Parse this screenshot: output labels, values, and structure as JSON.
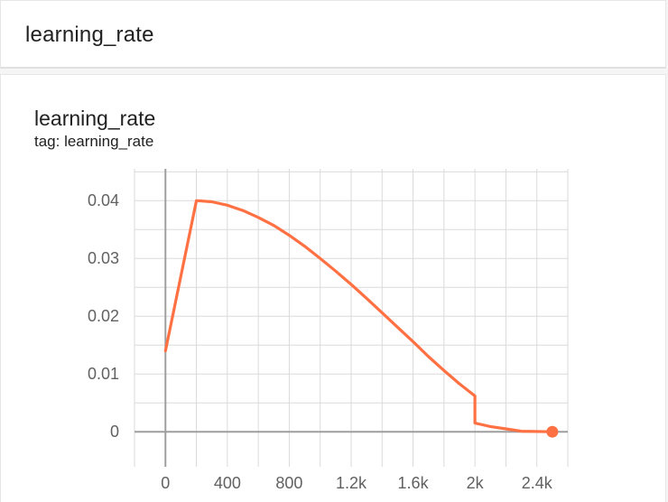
{
  "section": {
    "title": "learning_rate"
  },
  "card": {
    "title": "learning_rate",
    "tag": "tag: learning_rate"
  },
  "colors": {
    "series": "#ff7043",
    "grid": "#dadada",
    "axis": "#9e9e9e",
    "tick_text": "#616161"
  },
  "chart_data": {
    "type": "line",
    "title": "learning_rate",
    "xlabel": "",
    "ylabel": "",
    "xlim": [
      -200,
      2600
    ],
    "ylim": [
      -0.0045,
      0.0455
    ],
    "x_ticks": [
      0,
      400,
      800,
      1200,
      1600,
      2000,
      2400
    ],
    "x_tick_labels": [
      "0",
      "400",
      "800",
      "1.2k",
      "1.6k",
      "2k",
      "2.4k"
    ],
    "y_ticks": [
      0,
      0.01,
      0.02,
      0.03,
      0.04
    ],
    "y_tick_labels": [
      "0",
      "0.01",
      "0.02",
      "0.03",
      "0.04"
    ],
    "grid": true,
    "series": [
      {
        "color": "#ff7043",
        "points": [
          [
            0,
            0.014
          ],
          [
            200,
            0.04
          ],
          [
            300,
            0.0398
          ],
          [
            400,
            0.0392
          ],
          [
            500,
            0.0383
          ],
          [
            600,
            0.0371
          ],
          [
            700,
            0.0357
          ],
          [
            800,
            0.034
          ],
          [
            900,
            0.0321
          ],
          [
            1000,
            0.03
          ],
          [
            1100,
            0.0278
          ],
          [
            1200,
            0.0255
          ],
          [
            1300,
            0.0231
          ],
          [
            1400,
            0.0206
          ],
          [
            1500,
            0.0181
          ],
          [
            1600,
            0.0156
          ],
          [
            1700,
            0.013
          ],
          [
            1800,
            0.0106
          ],
          [
            1900,
            0.0083
          ],
          [
            2000,
            0.0062
          ],
          [
            2000,
            0.0015
          ],
          [
            2050,
            0.0012
          ],
          [
            2100,
            0.0009
          ],
          [
            2200,
            0.0005
          ],
          [
            2300,
            0.0001
          ],
          [
            2500,
            0.0
          ]
        ],
        "end_marker": [
          2500,
          0.0
        ]
      }
    ]
  }
}
